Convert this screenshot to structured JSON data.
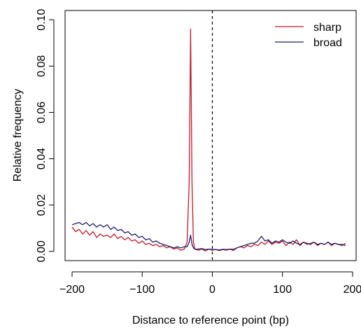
{
  "chart_data": {
    "type": "line",
    "title": "",
    "xlabel": "Distance to reference point (bp)",
    "ylabel": "Relative frequency",
    "xlim": [
      -210,
      205
    ],
    "ylim": [
      -0.004,
      0.104
    ],
    "xticks": [
      -200,
      -100,
      0,
      100,
      200
    ],
    "xtick_labels": [
      "−200",
      "−100",
      "0",
      "100",
      "200"
    ],
    "yticks": [
      0.0,
      0.02,
      0.04,
      0.06,
      0.08,
      0.1
    ],
    "ytick_labels": [
      "0.00",
      "0.02",
      "0.04",
      "0.06",
      "0.08",
      "0.10"
    ],
    "reference_line_x": 0,
    "grid": false,
    "legend_position": "top-right",
    "x": [
      -200,
      -195,
      -190,
      -185,
      -180,
      -175,
      -170,
      -165,
      -160,
      -155,
      -150,
      -145,
      -140,
      -135,
      -130,
      -125,
      -120,
      -115,
      -110,
      -105,
      -100,
      -95,
      -90,
      -85,
      -80,
      -75,
      -70,
      -65,
      -60,
      -55,
      -50,
      -45,
      -40,
      -36,
      -33,
      -31,
      -29,
      -27,
      -25,
      -20,
      -15,
      -10,
      -5,
      0,
      5,
      10,
      15,
      20,
      25,
      30,
      35,
      40,
      45,
      50,
      55,
      60,
      65,
      70,
      75,
      80,
      85,
      90,
      95,
      100,
      105,
      110,
      115,
      120,
      125,
      130,
      135,
      140,
      145,
      150,
      155,
      160,
      165,
      170,
      175,
      180,
      185,
      190
    ],
    "series": [
      {
        "name": "sharp",
        "color": "#c0182a",
        "values": [
          0.0105,
          0.0085,
          0.0095,
          0.0075,
          0.009,
          0.007,
          0.0085,
          0.006,
          0.0075,
          0.0065,
          0.007,
          0.006,
          0.0075,
          0.0055,
          0.0065,
          0.005,
          0.006,
          0.0045,
          0.005,
          0.0035,
          0.0045,
          0.003,
          0.0035,
          0.0025,
          0.003,
          0.002,
          0.0025,
          0.0015,
          0.002,
          0.001,
          0.0015,
          0.0005,
          0.001,
          0.004,
          0.03,
          0.096,
          0.03,
          0.004,
          0.001,
          0.0005,
          0.001,
          0.0002,
          0.001,
          0.0005,
          0.0008,
          0.0003,
          0.0008,
          0.0005,
          0.001,
          0.0004,
          0.0015,
          0.002,
          0.0015,
          0.0025,
          0.002,
          0.003,
          0.0025,
          0.004,
          0.003,
          0.0045,
          0.003,
          0.004,
          0.0035,
          0.0045,
          0.0025,
          0.004,
          0.003,
          0.005,
          0.0025,
          0.004,
          0.003,
          0.0035,
          0.004,
          0.0025,
          0.0035,
          0.003,
          0.004,
          0.0025,
          0.0035,
          0.003,
          0.0025,
          0.0035
        ]
      },
      {
        "name": "broad",
        "color": "#1b1f6e",
        "values": [
          0.0115,
          0.012,
          0.0125,
          0.0115,
          0.0125,
          0.011,
          0.012,
          0.0105,
          0.0115,
          0.0105,
          0.0115,
          0.0095,
          0.0105,
          0.009,
          0.0095,
          0.008,
          0.0085,
          0.007,
          0.0075,
          0.006,
          0.0065,
          0.005,
          0.0055,
          0.004,
          0.0045,
          0.0035,
          0.003,
          0.0025,
          0.002,
          0.0015,
          0.002,
          0.0015,
          0.002,
          0.002,
          0.004,
          0.007,
          0.003,
          0.0015,
          0.001,
          0.001,
          0.0012,
          0.0008,
          0.001,
          0.0008,
          0.0008,
          0.0006,
          0.0009,
          0.0008,
          0.001,
          0.0009,
          0.0015,
          0.002,
          0.0025,
          0.003,
          0.0035,
          0.0035,
          0.0045,
          0.0065,
          0.0045,
          0.005,
          0.0035,
          0.0045,
          0.004,
          0.005,
          0.004,
          0.0035,
          0.0045,
          0.0035,
          0.003,
          0.004,
          0.0035,
          0.003,
          0.004,
          0.003,
          0.0035,
          0.003,
          0.004,
          0.003,
          0.0035,
          0.003,
          0.003,
          0.0025
        ]
      }
    ]
  }
}
